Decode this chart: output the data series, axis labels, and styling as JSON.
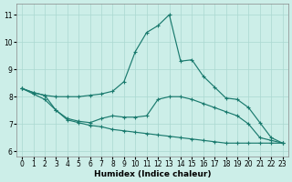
{
  "xlabel": "Humidex (Indice chaleur)",
  "background_color": "#cceee8",
  "line_color": "#1a7a6e",
  "grid_color": "#aad8d0",
  "xlim": [
    -0.5,
    23.5
  ],
  "ylim": [
    5.8,
    11.4
  ],
  "yticks": [
    6,
    7,
    8,
    9,
    10,
    11
  ],
  "xticks": [
    0,
    1,
    2,
    3,
    4,
    5,
    6,
    7,
    8,
    9,
    10,
    11,
    12,
    13,
    14,
    15,
    16,
    17,
    18,
    19,
    20,
    21,
    22,
    23
  ],
  "line1_x": [
    0,
    1,
    2,
    3,
    4,
    5,
    6,
    7,
    8,
    9,
    10,
    11,
    12,
    13,
    14,
    15,
    16,
    17,
    18,
    19,
    20,
    21,
    22,
    23
  ],
  "line1_y": [
    8.3,
    8.15,
    8.05,
    8.0,
    8.0,
    8.0,
    8.05,
    8.1,
    8.2,
    8.55,
    9.65,
    10.35,
    10.6,
    11.0,
    9.3,
    9.35,
    8.75,
    8.35,
    7.95,
    7.9,
    7.6,
    7.05,
    6.5,
    6.3
  ],
  "line2_x": [
    0,
    1,
    2,
    3,
    4,
    5,
    6,
    7,
    8,
    9,
    10,
    11,
    12,
    13,
    14,
    15,
    16,
    17,
    18,
    19,
    20,
    21,
    22,
    23
  ],
  "line2_y": [
    8.3,
    8.15,
    8.05,
    7.5,
    7.2,
    7.1,
    7.05,
    7.2,
    7.3,
    7.25,
    7.25,
    7.3,
    7.9,
    8.0,
    8.0,
    7.9,
    7.75,
    7.6,
    7.45,
    7.3,
    7.0,
    6.5,
    6.4,
    6.3
  ],
  "line3_x": [
    0,
    1,
    2,
    3,
    4,
    5,
    6,
    7,
    8,
    9,
    10,
    11,
    12,
    13,
    14,
    15,
    16,
    17,
    18,
    19,
    20,
    21,
    22,
    23
  ],
  "line3_y": [
    8.3,
    8.1,
    7.9,
    7.5,
    7.15,
    7.05,
    6.95,
    6.9,
    6.8,
    6.75,
    6.7,
    6.65,
    6.6,
    6.55,
    6.5,
    6.45,
    6.4,
    6.35,
    6.3,
    6.3,
    6.3,
    6.3,
    6.3,
    6.3
  ]
}
